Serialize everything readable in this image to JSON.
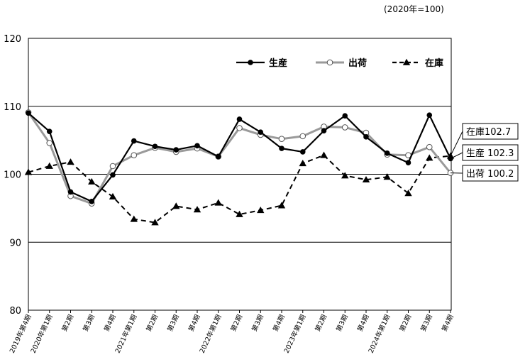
{
  "unit_note": "(2020年=100)",
  "chart_data": {
    "type": "line",
    "ylim": [
      80,
      120
    ],
    "yticks": [
      80,
      90,
      100,
      110,
      120
    ],
    "grid": "horizontal",
    "legend_placement": "top-right",
    "categories": [
      "2019年第4期",
      "2020年第1期",
      "第2期",
      "第3期",
      "第4期",
      "2021年第1期",
      "第2期",
      "第3期",
      "第4期",
      "2022年第1期",
      "第2期",
      "第3期",
      "第4期",
      "2023年第1期",
      "第2期",
      "第3期",
      "第4期",
      "2024年第1期",
      "第2期",
      "第3期",
      "第4期"
    ],
    "series": [
      {
        "name": "生産",
        "style": "solid-black-filled-circle",
        "color": "#000000",
        "values": [
          109.0,
          106.3,
          97.4,
          96.0,
          99.9,
          104.9,
          104.1,
          103.6,
          104.2,
          102.6,
          108.1,
          106.2,
          103.8,
          103.3,
          106.4,
          108.6,
          105.5,
          103.1,
          101.7,
          108.7,
          102.3
        ]
      },
      {
        "name": "出荷",
        "style": "solid-gray-open-circle",
        "color": "#9a9a9a",
        "values": [
          109.1,
          104.6,
          96.8,
          95.7,
          101.2,
          102.8,
          103.9,
          103.3,
          103.8,
          102.6,
          106.8,
          105.8,
          105.2,
          105.6,
          107.0,
          106.9,
          106.1,
          102.9,
          102.8,
          104.0,
          100.2
        ]
      },
      {
        "name": "在庫",
        "style": "dashed-black-filled-triangle",
        "color": "#000000",
        "values": [
          100.3,
          101.2,
          101.8,
          98.9,
          96.7,
          93.4,
          92.9,
          95.3,
          94.8,
          95.8,
          94.1,
          94.7,
          95.4,
          101.6,
          102.8,
          99.8,
          99.2,
          99.6,
          97.2,
          102.4,
          102.7
        ]
      }
    ],
    "annotations": [
      {
        "text": "在庫102.7",
        "series": "在庫"
      },
      {
        "text": "生産 102.3",
        "series": "生産"
      },
      {
        "text": "出荷 100.2",
        "series": "出荷"
      }
    ]
  }
}
